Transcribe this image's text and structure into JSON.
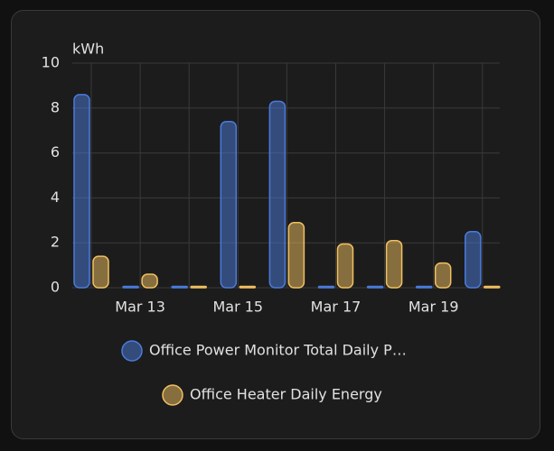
{
  "chart_data": {
    "type": "bar",
    "y_label": "kWh",
    "categories": [
      null,
      "Mar 13",
      null,
      "Mar 15",
      null,
      "Mar 17",
      null,
      "Mar 19",
      null
    ],
    "series": [
      {
        "name": "Office Power Monitor Total Daily P…",
        "color": "#4a7bdc",
        "values": [
          8.6,
          0,
          0,
          7.4,
          8.3,
          0,
          0,
          0,
          2.5
        ]
      },
      {
        "name": "Office Heater Daily Energy",
        "color": "#f0c060",
        "values": [
          1.4,
          0.6,
          0,
          0,
          2.9,
          1.95,
          2.1,
          1.1,
          0
        ]
      }
    ],
    "ylim": [
      0,
      10
    ],
    "yticks": [
      0,
      2,
      4,
      6,
      8,
      10
    ],
    "grid": true
  }
}
